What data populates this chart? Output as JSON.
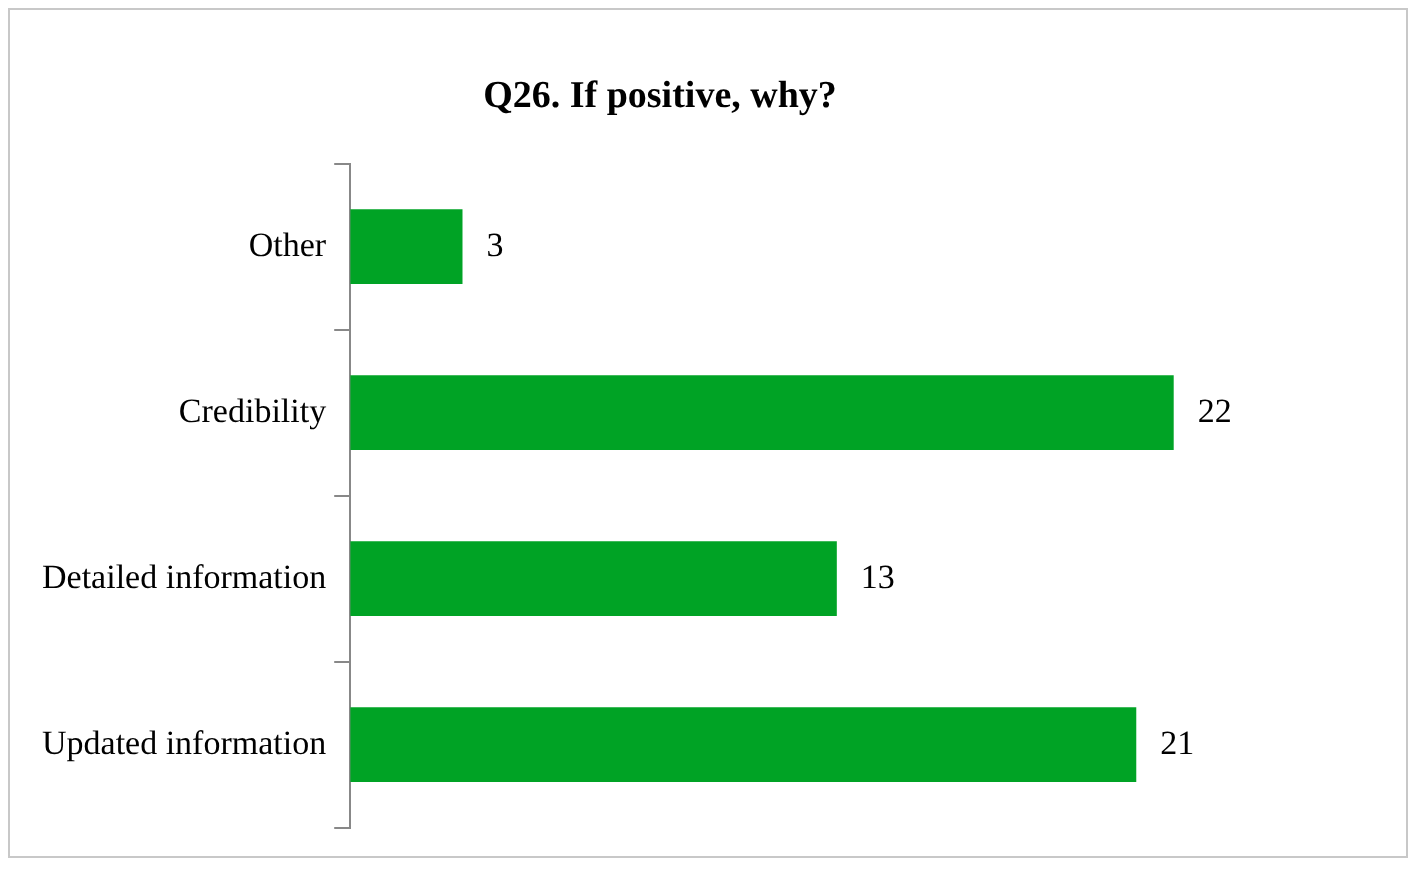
{
  "chart_data": {
    "type": "bar",
    "orientation": "horizontal",
    "title": "Q26. If positive, why?",
    "categories": [
      "Other",
      "Credibility",
      "Detailed information",
      "Updated information"
    ],
    "values": [
      3,
      22,
      13,
      21
    ],
    "color": "#00a325",
    "data_labels": true,
    "grid": false,
    "legend": false,
    "tick_labels": "y"
  }
}
